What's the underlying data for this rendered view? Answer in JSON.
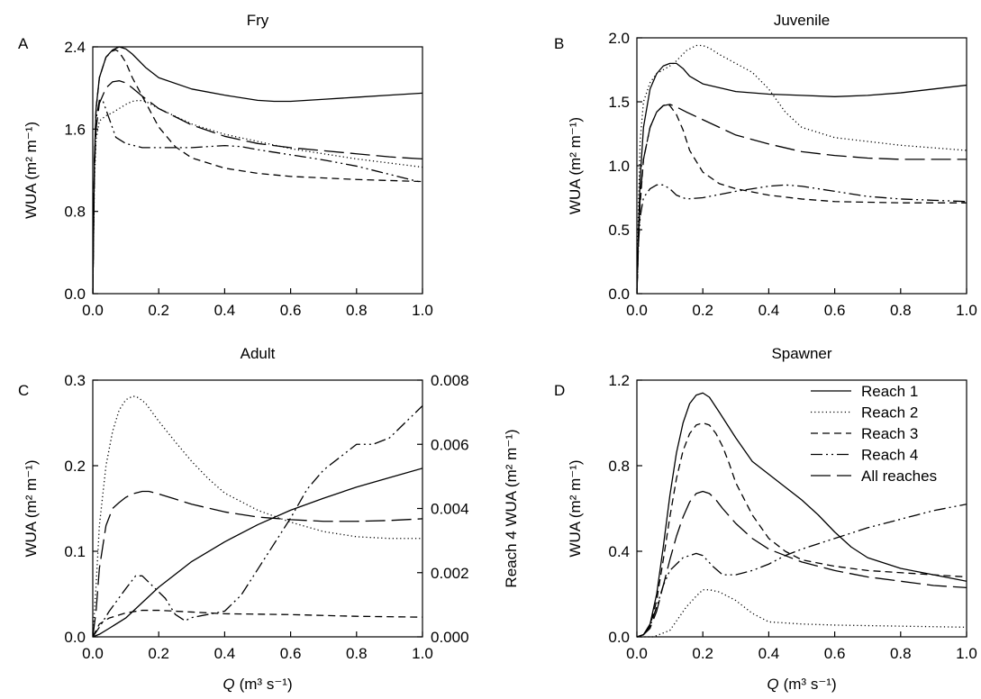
{
  "figure": {
    "xlabel_var": "Q",
    "xlabel_unit": "(m³ s⁻¹)"
  },
  "chart_data": [
    {
      "type": "line",
      "panel": "A",
      "title": "Fry",
      "xlabel": "",
      "ylabel": "WUA (m² m⁻¹)",
      "xlim": [
        0.0,
        1.0
      ],
      "ylim": [
        0.0,
        2.4
      ],
      "xticks": [
        "0.0",
        "0.2",
        "0.4",
        "0.6",
        "0.8",
        "1.0"
      ],
      "yticks": [
        "0.0",
        "0.8",
        "1.6",
        "2.4"
      ],
      "series": [
        {
          "name": "Reach 1",
          "style": "solid",
          "x": [
            0,
            0.005,
            0.01,
            0.02,
            0.04,
            0.06,
            0.08,
            0.1,
            0.12,
            0.16,
            0.2,
            0.3,
            0.4,
            0.5,
            0.55,
            0.6,
            0.7,
            0.8,
            0.9,
            1.0
          ],
          "y": [
            0,
            1.3,
            1.8,
            2.1,
            2.3,
            2.37,
            2.4,
            2.38,
            2.33,
            2.2,
            2.1,
            1.99,
            1.93,
            1.88,
            1.87,
            1.87,
            1.89,
            1.91,
            1.93,
            1.95
          ]
        },
        {
          "name": "Reach 2",
          "style": "dotted",
          "x": [
            0,
            0.005,
            0.01,
            0.02,
            0.04,
            0.06,
            0.08,
            0.1,
            0.12,
            0.14,
            0.16,
            0.2,
            0.3,
            0.4,
            0.5,
            0.6,
            0.7,
            0.8,
            0.9,
            1.0
          ],
          "y": [
            0,
            1.1,
            1.5,
            1.68,
            1.73,
            1.76,
            1.8,
            1.84,
            1.87,
            1.88,
            1.87,
            1.8,
            1.65,
            1.55,
            1.48,
            1.41,
            1.36,
            1.31,
            1.27,
            1.23
          ]
        },
        {
          "name": "Reach 3",
          "style": "dashed",
          "x": [
            0,
            0.005,
            0.01,
            0.02,
            0.04,
            0.06,
            0.07,
            0.08,
            0.1,
            0.12,
            0.15,
            0.2,
            0.25,
            0.3,
            0.4,
            0.5,
            0.6,
            0.8,
            1.0
          ],
          "y": [
            0,
            1.3,
            1.8,
            2.1,
            2.3,
            2.36,
            2.37,
            2.35,
            2.25,
            2.1,
            1.92,
            1.62,
            1.43,
            1.32,
            1.22,
            1.17,
            1.14,
            1.11,
            1.09
          ]
        },
        {
          "name": "Reach 4",
          "style": "dashdotdot",
          "x": [
            0,
            0.005,
            0.01,
            0.02,
            0.03,
            0.05,
            0.07,
            0.1,
            0.15,
            0.2,
            0.3,
            0.4,
            0.45,
            0.5,
            0.6,
            0.7,
            0.8,
            0.9,
            1.0
          ],
          "y": [
            0,
            1.3,
            1.7,
            1.88,
            1.88,
            1.7,
            1.52,
            1.46,
            1.42,
            1.42,
            1.42,
            1.44,
            1.43,
            1.4,
            1.35,
            1.3,
            1.24,
            1.16,
            1.08
          ]
        },
        {
          "name": "All reaches",
          "style": "longdash",
          "x": [
            0,
            0.005,
            0.01,
            0.02,
            0.04,
            0.06,
            0.08,
            0.1,
            0.12,
            0.15,
            0.2,
            0.25,
            0.3,
            0.4,
            0.5,
            0.6,
            0.7,
            0.8,
            0.9,
            1.0
          ],
          "y": [
            0,
            1.2,
            1.6,
            1.85,
            2.0,
            2.06,
            2.07,
            2.05,
            2.0,
            1.92,
            1.8,
            1.72,
            1.64,
            1.53,
            1.46,
            1.42,
            1.39,
            1.36,
            1.33,
            1.31
          ]
        }
      ]
    },
    {
      "type": "line",
      "panel": "B",
      "title": "Juvenile",
      "xlabel": "",
      "ylabel": "WUA (m² m⁻¹)",
      "xlim": [
        0.0,
        1.0
      ],
      "ylim": [
        0.0,
        2.0
      ],
      "xticks": [
        "0.0",
        "0.2",
        "0.4",
        "0.6",
        "0.8",
        "1.0"
      ],
      "yticks": [
        "0.0",
        "0.5",
        "1.0",
        "1.5",
        "2.0"
      ],
      "series": [
        {
          "name": "Reach 1",
          "style": "solid",
          "x": [
            0,
            0.005,
            0.01,
            0.02,
            0.04,
            0.06,
            0.08,
            0.1,
            0.12,
            0.14,
            0.16,
            0.2,
            0.3,
            0.4,
            0.5,
            0.6,
            0.7,
            0.8,
            0.9,
            1.0
          ],
          "y": [
            0,
            0.5,
            0.9,
            1.3,
            1.6,
            1.72,
            1.78,
            1.8,
            1.8,
            1.76,
            1.7,
            1.64,
            1.58,
            1.56,
            1.55,
            1.54,
            1.55,
            1.57,
            1.6,
            1.63
          ]
        },
        {
          "name": "Reach 2",
          "style": "dotted",
          "x": [
            0,
            0.005,
            0.01,
            0.02,
            0.04,
            0.06,
            0.08,
            0.1,
            0.12,
            0.15,
            0.18,
            0.2,
            0.22,
            0.25,
            0.3,
            0.35,
            0.4,
            0.45,
            0.5,
            0.6,
            0.7,
            0.8,
            0.9,
            1.0
          ],
          "y": [
            0,
            0.7,
            1.2,
            1.5,
            1.65,
            1.72,
            1.75,
            1.78,
            1.82,
            1.9,
            1.94,
            1.94,
            1.92,
            1.87,
            1.8,
            1.73,
            1.6,
            1.42,
            1.3,
            1.22,
            1.19,
            1.16,
            1.14,
            1.12
          ]
        },
        {
          "name": "Reach 3",
          "style": "dashed",
          "x": [
            0,
            0.005,
            0.01,
            0.02,
            0.04,
            0.06,
            0.08,
            0.09,
            0.1,
            0.12,
            0.14,
            0.16,
            0.2,
            0.25,
            0.3,
            0.4,
            0.5,
            0.6,
            0.8,
            1.0
          ],
          "y": [
            0,
            0.4,
            0.7,
            1.05,
            1.3,
            1.42,
            1.47,
            1.48,
            1.47,
            1.4,
            1.28,
            1.12,
            0.95,
            0.86,
            0.82,
            0.77,
            0.74,
            0.72,
            0.71,
            0.71
          ]
        },
        {
          "name": "Reach 4",
          "style": "dashdotdot",
          "x": [
            0,
            0.005,
            0.01,
            0.02,
            0.04,
            0.06,
            0.08,
            0.1,
            0.12,
            0.15,
            0.2,
            0.3,
            0.4,
            0.45,
            0.5,
            0.6,
            0.7,
            0.8,
            0.9,
            1.0
          ],
          "y": [
            0,
            0.4,
            0.6,
            0.75,
            0.82,
            0.85,
            0.85,
            0.82,
            0.77,
            0.74,
            0.75,
            0.8,
            0.84,
            0.85,
            0.84,
            0.8,
            0.76,
            0.74,
            0.73,
            0.72
          ]
        },
        {
          "name": "All reaches",
          "style": "longdash",
          "x": [
            0,
            0.005,
            0.01,
            0.02,
            0.04,
            0.06,
            0.08,
            0.1,
            0.12,
            0.15,
            0.2,
            0.25,
            0.3,
            0.4,
            0.5,
            0.6,
            0.7,
            0.8,
            0.9,
            1.0
          ],
          "y": [
            0,
            0.45,
            0.75,
            1.05,
            1.3,
            1.42,
            1.47,
            1.48,
            1.46,
            1.42,
            1.36,
            1.3,
            1.24,
            1.17,
            1.11,
            1.08,
            1.06,
            1.05,
            1.05,
            1.05
          ]
        }
      ]
    },
    {
      "type": "line",
      "panel": "C",
      "title": "Adult",
      "xlabel": "",
      "ylabel": "WUA (m² m⁻¹)",
      "ylabel_right": "Reach 4 WUA (m² m⁻¹)",
      "xlim": [
        0.0,
        1.0
      ],
      "ylim": [
        0.0,
        0.3
      ],
      "ylim_right": [
        0.0,
        0.008
      ],
      "xticks": [
        "0.0",
        "0.2",
        "0.4",
        "0.6",
        "0.8",
        "1.0"
      ],
      "yticks": [
        "0.0",
        "0.1",
        "0.2",
        "0.3"
      ],
      "yticks_right": [
        "0.000",
        "0.002",
        "0.004",
        "0.006",
        "0.008"
      ],
      "series": [
        {
          "name": "Reach 1",
          "style": "solid",
          "axis": "left",
          "x": [
            0,
            0.02,
            0.05,
            0.1,
            0.15,
            0.2,
            0.3,
            0.4,
            0.5,
            0.6,
            0.7,
            0.8,
            0.9,
            1.0
          ],
          "y": [
            0,
            0.003,
            0.01,
            0.022,
            0.04,
            0.058,
            0.088,
            0.111,
            0.131,
            0.148,
            0.162,
            0.175,
            0.186,
            0.197
          ]
        },
        {
          "name": "Reach 2",
          "style": "dotted",
          "axis": "left",
          "x": [
            0,
            0.01,
            0.02,
            0.04,
            0.06,
            0.08,
            0.1,
            0.12,
            0.13,
            0.14,
            0.16,
            0.2,
            0.25,
            0.3,
            0.35,
            0.4,
            0.5,
            0.6,
            0.7,
            0.8,
            0.9,
            1.0
          ],
          "y": [
            0,
            0.06,
            0.13,
            0.2,
            0.24,
            0.265,
            0.277,
            0.281,
            0.281,
            0.279,
            0.273,
            0.252,
            0.228,
            0.205,
            0.185,
            0.168,
            0.148,
            0.134,
            0.123,
            0.117,
            0.115,
            0.115
          ]
        },
        {
          "name": "Reach 3",
          "style": "dashed",
          "axis": "left",
          "x": [
            0,
            0.02,
            0.05,
            0.1,
            0.15,
            0.2,
            0.3,
            0.4,
            0.6,
            0.8,
            1.0
          ],
          "y": [
            0,
            0.015,
            0.022,
            0.028,
            0.031,
            0.031,
            0.029,
            0.027,
            0.026,
            0.024,
            0.023
          ]
        },
        {
          "name": "Reach 4",
          "style": "dashdotdot",
          "axis": "right",
          "x": [
            0,
            0.02,
            0.05,
            0.1,
            0.13,
            0.15,
            0.18,
            0.22,
            0.25,
            0.28,
            0.3,
            0.35,
            0.4,
            0.45,
            0.5,
            0.55,
            0.6,
            0.65,
            0.7,
            0.75,
            0.8,
            0.85,
            0.9,
            0.95,
            1.0
          ],
          "y": [
            0,
            0.0003,
            0.0008,
            0.0015,
            0.0019,
            0.0019,
            0.0016,
            0.0012,
            0.0007,
            0.0005,
            0.0006,
            0.0007,
            0.0008,
            0.0013,
            0.0021,
            0.0029,
            0.0037,
            0.0046,
            0.0052,
            0.0056,
            0.006,
            0.006,
            0.0062,
            0.0067,
            0.0072
          ]
        },
        {
          "name": "All reaches",
          "style": "longdash",
          "axis": "left",
          "x": [
            0,
            0.01,
            0.02,
            0.04,
            0.06,
            0.08,
            0.1,
            0.12,
            0.15,
            0.17,
            0.2,
            0.25,
            0.3,
            0.4,
            0.5,
            0.6,
            0.7,
            0.8,
            0.9,
            1.0
          ],
          "y": [
            0,
            0.03,
            0.08,
            0.13,
            0.15,
            0.157,
            0.163,
            0.167,
            0.17,
            0.17,
            0.167,
            0.161,
            0.155,
            0.146,
            0.14,
            0.137,
            0.135,
            0.135,
            0.136,
            0.138
          ]
        }
      ]
    },
    {
      "type": "line",
      "panel": "D",
      "title": "Spawner",
      "xlabel": "",
      "ylabel": "WUA (m² m⁻¹)",
      "xlim": [
        0.0,
        1.0
      ],
      "ylim": [
        0.0,
        1.2
      ],
      "xticks": [
        "0.0",
        "0.2",
        "0.4",
        "0.6",
        "0.8",
        "1.0"
      ],
      "yticks": [
        "0.0",
        "0.4",
        "0.8",
        "1.2"
      ],
      "legend": "top-right",
      "series": [
        {
          "name": "Reach 1",
          "style": "solid",
          "x": [
            0,
            0.02,
            0.04,
            0.06,
            0.08,
            0.1,
            0.12,
            0.14,
            0.16,
            0.18,
            0.2,
            0.22,
            0.25,
            0.3,
            0.35,
            0.4,
            0.45,
            0.5,
            0.55,
            0.6,
            0.65,
            0.7,
            0.8,
            0.9,
            1.0
          ],
          "y": [
            0,
            0.01,
            0.06,
            0.2,
            0.42,
            0.66,
            0.86,
            1.0,
            1.09,
            1.13,
            1.14,
            1.12,
            1.05,
            0.93,
            0.82,
            0.76,
            0.7,
            0.64,
            0.57,
            0.49,
            0.42,
            0.37,
            0.32,
            0.29,
            0.26
          ]
        },
        {
          "name": "Reach 2",
          "style": "dotted",
          "x": [
            0,
            0.05,
            0.1,
            0.15,
            0.18,
            0.2,
            0.22,
            0.25,
            0.3,
            0.35,
            0.4,
            0.5,
            0.6,
            0.8,
            1.0
          ],
          "y": [
            0,
            0.0,
            0.03,
            0.14,
            0.19,
            0.22,
            0.22,
            0.21,
            0.17,
            0.11,
            0.07,
            0.06,
            0.055,
            0.05,
            0.045
          ]
        },
        {
          "name": "Reach 3",
          "style": "dashed",
          "x": [
            0,
            0.02,
            0.04,
            0.06,
            0.08,
            0.1,
            0.12,
            0.14,
            0.16,
            0.18,
            0.2,
            0.22,
            0.24,
            0.26,
            0.28,
            0.3,
            0.35,
            0.4,
            0.45,
            0.5,
            0.6,
            0.7,
            0.8,
            0.9,
            1.0
          ],
          "y": [
            0,
            0.01,
            0.05,
            0.17,
            0.36,
            0.56,
            0.74,
            0.87,
            0.95,
            0.99,
            1.0,
            0.99,
            0.95,
            0.89,
            0.81,
            0.72,
            0.57,
            0.46,
            0.4,
            0.36,
            0.33,
            0.31,
            0.3,
            0.29,
            0.28
          ]
        },
        {
          "name": "Reach 4",
          "style": "dashdotdot",
          "x": [
            0,
            0.02,
            0.04,
            0.06,
            0.08,
            0.1,
            0.14,
            0.18,
            0.2,
            0.23,
            0.26,
            0.3,
            0.35,
            0.4,
            0.45,
            0.5,
            0.6,
            0.7,
            0.8,
            0.9,
            1.0
          ],
          "y": [
            0,
            0.01,
            0.05,
            0.14,
            0.24,
            0.31,
            0.37,
            0.39,
            0.38,
            0.33,
            0.29,
            0.29,
            0.31,
            0.34,
            0.38,
            0.41,
            0.46,
            0.51,
            0.55,
            0.59,
            0.62
          ]
        },
        {
          "name": "All reaches",
          "style": "longdash",
          "x": [
            0,
            0.02,
            0.04,
            0.06,
            0.08,
            0.1,
            0.12,
            0.14,
            0.16,
            0.18,
            0.2,
            0.22,
            0.24,
            0.26,
            0.3,
            0.35,
            0.4,
            0.5,
            0.6,
            0.7,
            0.8,
            0.9,
            1.0
          ],
          "y": [
            0,
            0.01,
            0.04,
            0.12,
            0.24,
            0.36,
            0.47,
            0.56,
            0.63,
            0.67,
            0.68,
            0.67,
            0.64,
            0.6,
            0.53,
            0.46,
            0.41,
            0.35,
            0.31,
            0.28,
            0.26,
            0.24,
            0.23
          ]
        }
      ]
    }
  ]
}
